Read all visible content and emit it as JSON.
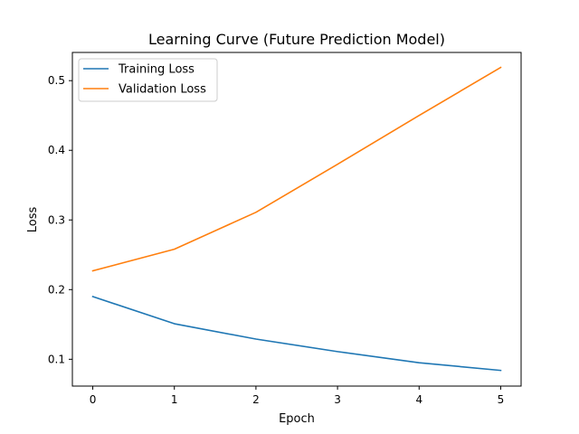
{
  "chart_data": {
    "type": "line",
    "title": "Learning Curve (Future Prediction Model)",
    "xlabel": "Epoch",
    "ylabel": "Loss",
    "x": [
      0,
      1,
      2,
      3,
      4,
      5
    ],
    "x_ticks": [
      "0",
      "1",
      "2",
      "3",
      "4",
      "5"
    ],
    "y_ticks": [
      "0.1",
      "0.2",
      "0.3",
      "0.4",
      "0.5"
    ],
    "y_tick_values": [
      0.1,
      0.2,
      0.3,
      0.4,
      0.5
    ],
    "xlim": [
      -0.25,
      5.25
    ],
    "ylim": [
      0.0615,
      0.5405
    ],
    "grid": false,
    "legend_position": "upper-left",
    "series": [
      {
        "name": "Training Loss",
        "color": "#1f77b4",
        "values": [
          0.19,
          0.151,
          0.129,
          0.111,
          0.095,
          0.084
        ]
      },
      {
        "name": "Validation Loss",
        "color": "#ff7f0e",
        "values": [
          0.227,
          0.258,
          0.311,
          0.38,
          0.45,
          0.519
        ]
      }
    ]
  }
}
